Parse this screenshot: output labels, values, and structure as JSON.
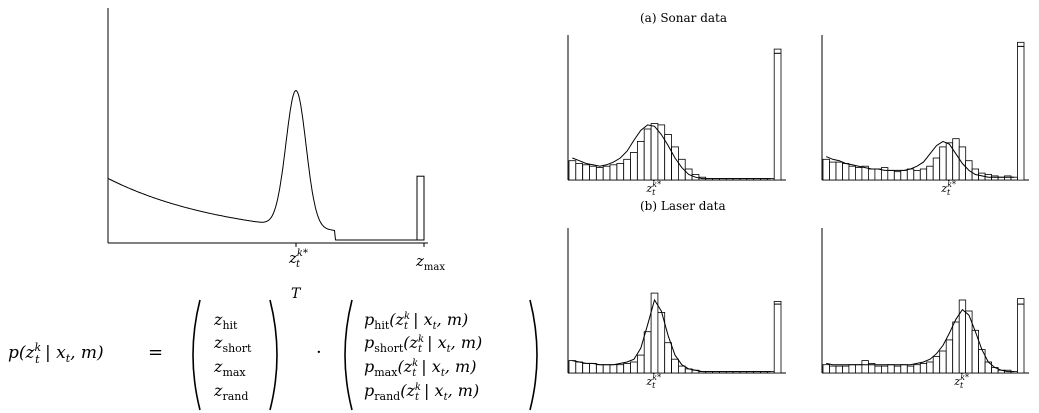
{
  "panel_titles": {
    "sonar": "(a) Sonar data",
    "laser": "(b) Laser data"
  },
  "labels": {
    "z_expected": "z",
    "z_expected_sub": "t",
    "z_expected_sup": "k*",
    "z_max": "z",
    "z_max_sub": "max"
  },
  "equation": {
    "lhs": "p(z",
    "lhs_rest": " | x",
    "lhs_tail": ", m)",
    "equals": "=",
    "dot": "·",
    "transpose": "T",
    "weights": [
      "hit",
      "short",
      "max",
      "rand"
    ],
    "terms_arg": "| x",
    "terms_tail": ", m)"
  },
  "chart_data": [
    {
      "type": "line",
      "title": "",
      "xlabel": "",
      "ylabel": "",
      "x_ticks": [
        "z_t^{k*}",
        "z_max"
      ],
      "x": [
        0,
        0.1,
        0.2,
        0.3,
        0.4,
        0.5,
        0.55,
        0.6,
        0.65,
        0.7,
        0.75,
        0.8,
        0.9,
        1.0
      ],
      "series": [
        {
          "values": [
            0.28,
            0.24,
            0.21,
            0.18,
            0.15,
            0.12,
            0.2,
            0.55,
            0.64,
            0.38,
            0.06,
            0.01,
            0.0,
            0.0
          ]
        }
      ],
      "max_spike": 0.29,
      "grid": false
    },
    {
      "type": "bar",
      "title": "(a) Sonar data",
      "panel": "sonar-left",
      "values": [
        0.14,
        0.12,
        0.11,
        0.1,
        0.09,
        0.1,
        0.11,
        0.12,
        0.15,
        0.2,
        0.28,
        0.37,
        0.41,
        0.4,
        0.33,
        0.24,
        0.15,
        0.08,
        0.04,
        0.02,
        0.01,
        0.01,
        0.01,
        0.01,
        0.01,
        0.01,
        0.01,
        0.01,
        0.01,
        0.01,
        0.95
      ],
      "curve": [
        0.16,
        0.14,
        0.12,
        0.11,
        0.1,
        0.11,
        0.13,
        0.16,
        0.21,
        0.29,
        0.36,
        0.4,
        0.39,
        0.33,
        0.25,
        0.16,
        0.09,
        0.04,
        0.02,
        0.01,
        0.01,
        0.01,
        0.01,
        0.01,
        0.01,
        0.01,
        0.01,
        0.01,
        0.01,
        0.01,
        0.92
      ]
    },
    {
      "type": "bar",
      "panel": "sonar-right",
      "values": [
        0.15,
        0.13,
        0.13,
        0.12,
        0.1,
        0.09,
        0.1,
        0.08,
        0.08,
        0.09,
        0.07,
        0.06,
        0.07,
        0.08,
        0.07,
        0.08,
        0.1,
        0.16,
        0.24,
        0.27,
        0.3,
        0.24,
        0.14,
        0.08,
        0.05,
        0.04,
        0.03,
        0.02,
        0.03,
        0.02,
        1.0
      ],
      "curve": [
        0.17,
        0.15,
        0.14,
        0.12,
        0.11,
        0.1,
        0.09,
        0.08,
        0.08,
        0.07,
        0.07,
        0.07,
        0.07,
        0.08,
        0.1,
        0.13,
        0.19,
        0.25,
        0.28,
        0.26,
        0.19,
        0.12,
        0.07,
        0.04,
        0.03,
        0.02,
        0.02,
        0.02,
        0.02,
        0.02,
        0.97
      ]
    },
    {
      "type": "bar",
      "title": "(b) Laser data",
      "panel": "laser-left",
      "values": [
        0.09,
        0.08,
        0.07,
        0.07,
        0.06,
        0.06,
        0.06,
        0.06,
        0.07,
        0.08,
        0.13,
        0.3,
        0.58,
        0.44,
        0.22,
        0.1,
        0.05,
        0.03,
        0.02,
        0.01,
        0.01,
        0.01,
        0.01,
        0.01,
        0.01,
        0.01,
        0.01,
        0.01,
        0.01,
        0.01,
        0.52
      ],
      "curve": [
        0.09,
        0.08,
        0.07,
        0.07,
        0.06,
        0.06,
        0.06,
        0.07,
        0.08,
        0.1,
        0.18,
        0.35,
        0.53,
        0.45,
        0.27,
        0.13,
        0.06,
        0.03,
        0.02,
        0.01,
        0.01,
        0.01,
        0.01,
        0.01,
        0.01,
        0.01,
        0.01,
        0.01,
        0.01,
        0.01,
        0.5
      ]
    },
    {
      "type": "bar",
      "panel": "laser-right",
      "values": [
        0.06,
        0.05,
        0.05,
        0.05,
        0.06,
        0.06,
        0.09,
        0.07,
        0.05,
        0.05,
        0.06,
        0.05,
        0.06,
        0.05,
        0.06,
        0.07,
        0.08,
        0.12,
        0.16,
        0.24,
        0.37,
        0.53,
        0.45,
        0.31,
        0.17,
        0.08,
        0.04,
        0.02,
        0.02,
        0.01,
        0.54
      ],
      "curve": [
        0.07,
        0.06,
        0.06,
        0.06,
        0.06,
        0.06,
        0.06,
        0.06,
        0.06,
        0.06,
        0.06,
        0.06,
        0.06,
        0.06,
        0.07,
        0.08,
        0.1,
        0.14,
        0.2,
        0.29,
        0.39,
        0.46,
        0.42,
        0.3,
        0.17,
        0.08,
        0.04,
        0.02,
        0.01,
        0.01,
        0.5
      ]
    }
  ]
}
